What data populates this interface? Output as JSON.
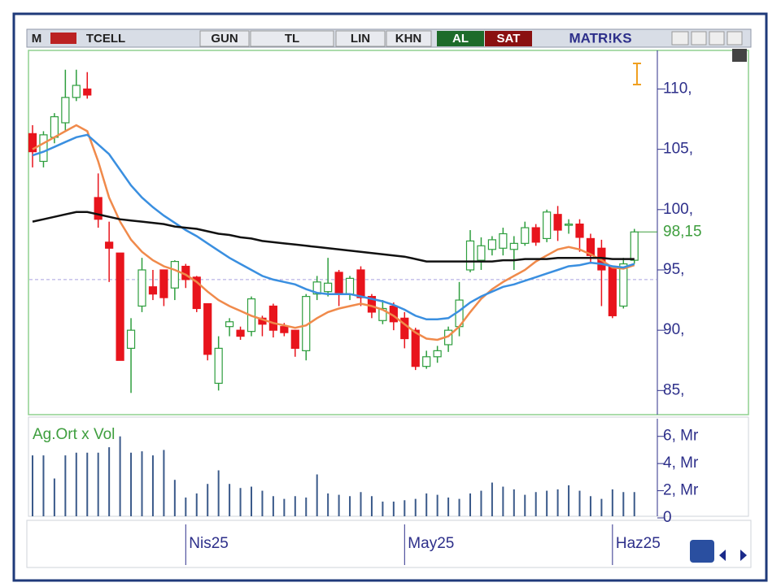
{
  "toolbar": {
    "symbol_icon": "M",
    "symbol": "TCELL",
    "buttons": [
      "GUN",
      "TL",
      "LIN",
      "KHN"
    ],
    "buy": "AL",
    "sell": "SAT",
    "brand": "MATR!KS"
  },
  "chart_data": {
    "type": "candlestick",
    "categories": [
      null,
      null,
      null,
      null,
      null,
      null,
      null,
      null,
      null,
      null,
      null,
      null,
      null,
      null,
      "Nis25",
      null,
      null,
      null,
      null,
      null,
      null,
      null,
      null,
      null,
      null,
      null,
      null,
      null,
      null,
      null,
      null,
      null,
      null,
      null,
      "May25",
      null,
      null,
      null,
      null,
      null,
      null,
      null,
      null,
      null,
      null,
      null,
      null,
      null,
      null,
      null,
      null,
      null,
      null,
      "Haz25",
      null,
      null
    ],
    "open": [
      106.3,
      104,
      106,
      107.2,
      109.3,
      110,
      101,
      97.3,
      96.4,
      88.5,
      92,
      93.6,
      95,
      93.5,
      95.3,
      94.4,
      92.2,
      85.6,
      90.3,
      90,
      89.9,
      91,
      92,
      90.3,
      90,
      88.3,
      93,
      93.2,
      94.8,
      93,
      95,
      92.8,
      90.8,
      92,
      91,
      90,
      87,
      87.8,
      88.8,
      90.3,
      95,
      95.8,
      96.7,
      96.8,
      96.7,
      97.2,
      98.5,
      97.6,
      99.6,
      98.7,
      98.8,
      97.6,
      96.8,
      95.3,
      92,
      95.8
    ],
    "high": [
      107,
      106.5,
      108,
      111.6,
      111.6,
      111.4,
      103,
      99,
      96.4,
      91,
      96,
      95,
      95,
      95.8,
      95.5,
      94.5,
      92.2,
      89.5,
      91,
      90.3,
      92.8,
      91.2,
      92.2,
      90.6,
      90,
      93,
      94.5,
      96,
      95,
      94.5,
      95.3,
      93,
      92.5,
      92.3,
      91.5,
      90.2,
      88.3,
      88.7,
      90.3,
      94,
      98.3,
      97.7,
      97.8,
      98.5,
      97.8,
      99,
      98.8,
      100,
      100.3,
      99.2,
      99.2,
      98,
      97.5,
      95.3,
      96,
      98.4
    ],
    "low": [
      103.5,
      103.5,
      105.5,
      106.5,
      109,
      109.2,
      98.5,
      94,
      87.5,
      84.8,
      91.5,
      92.5,
      92,
      92.5,
      93.5,
      91.5,
      87.5,
      85,
      89.5,
      89.2,
      89.5,
      89.5,
      89.4,
      89.5,
      87.8,
      87.5,
      92.5,
      92.8,
      92,
      92.5,
      92,
      91,
      90.5,
      90,
      88.5,
      86.7,
      86.8,
      87.3,
      88.2,
      89.5,
      94.8,
      95,
      96.2,
      96.2,
      95,
      97,
      97,
      97.3,
      97.4,
      98,
      96.5,
      95.5,
      92,
      91,
      91.8,
      95.5
    ],
    "close": [
      104.8,
      106.2,
      107.7,
      109.3,
      110.3,
      109.5,
      99.2,
      96.8,
      87.5,
      90,
      95,
      93,
      92.7,
      95.7,
      94.2,
      91.8,
      88,
      88.5,
      90.7,
      89.5,
      92.6,
      90.5,
      90,
      89.8,
      88.5,
      92.8,
      94,
      93.9,
      93,
      94.3,
      92.7,
      91.5,
      91.8,
      90.7,
      89.3,
      87,
      87.8,
      88.3,
      90,
      92.5,
      97.4,
      97,
      97.5,
      98,
      97.2,
      98.5,
      97.3,
      99.8,
      98.3,
      98.8,
      97.7,
      96.2,
      95,
      91.2,
      95.5,
      98.15
    ],
    "up_color": "#2e9e3e",
    "down_color": "#e8141c",
    "ylim": [
      83,
      113.2
    ],
    "yticks": [
      {
        "value": 85,
        "label": "85,"
      },
      {
        "value": 90,
        "label": "90,"
      },
      {
        "value": 95,
        "label": "95,"
      },
      {
        "value": 100,
        "label": "100,"
      },
      {
        "value": 105,
        "label": "105,"
      },
      {
        "value": 110,
        "label": "110,"
      }
    ],
    "last_price": {
      "value": 98.15,
      "label": "98,15"
    },
    "reference_line": 94.2,
    "ma_lines": [
      {
        "color": "#f08a4b",
        "values": [
          105,
          105.5,
          106,
          106.5,
          107,
          106.5,
          104,
          101,
          99,
          97.5,
          96.5,
          95.8,
          95.3,
          95,
          94.6,
          94,
          93.2,
          92.5,
          92,
          91.6,
          91.2,
          90.9,
          90.6,
          90.4,
          90.2,
          90.4,
          91,
          91.5,
          91.8,
          92,
          92.2,
          92,
          91.7,
          91.2,
          90.5,
          89.8,
          89.3,
          89.2,
          89.5,
          90.3,
          91.5,
          92.6,
          93.4,
          94,
          94.5,
          95,
          95.7,
          96.2,
          96.7,
          96.9,
          96.7,
          96.3,
          95.8,
          95.2,
          95.1,
          95.4
        ]
      },
      {
        "color": "#3a8fe0",
        "values": [
          104.5,
          104.8,
          105.2,
          105.6,
          106,
          106.2,
          105.4,
          104.6,
          103.3,
          102,
          101,
          100.2,
          99.5,
          98.9,
          98.3,
          97.8,
          97.2,
          96.6,
          96,
          95.5,
          95,
          94.5,
          94.2,
          94,
          93.8,
          93.4,
          93.1,
          93,
          93,
          93,
          92.8,
          92.6,
          92.4,
          92.1,
          91.7,
          91.2,
          90.9,
          90.9,
          91,
          91.6,
          92.3,
          92.8,
          93.2,
          93.6,
          93.8,
          94.1,
          94.4,
          94.7,
          95,
          95.3,
          95.4,
          95.6,
          95.5,
          95.3,
          95.2,
          95.5
        ]
      },
      {
        "color": "#111111",
        "values": [
          99,
          99.2,
          99.4,
          99.6,
          99.8,
          99.8,
          99.6,
          99.4,
          99.2,
          99.1,
          99,
          98.9,
          98.8,
          98.6,
          98.5,
          98.4,
          98.2,
          98,
          97.9,
          97.7,
          97.6,
          97.4,
          97.3,
          97.2,
          97.1,
          97,
          96.9,
          96.8,
          96.7,
          96.6,
          96.5,
          96.4,
          96.3,
          96.2,
          96.1,
          95.9,
          95.7,
          95.7,
          95.7,
          95.7,
          95.7,
          95.7,
          95.7,
          95.8,
          95.8,
          95.9,
          95.9,
          95.9,
          96,
          96,
          96,
          96,
          96,
          95.9,
          95.9,
          95.9
        ]
      }
    ],
    "volume": {
      "title": "Ag.Ort x Vol",
      "color": "#3b5a8a",
      "values": [
        4.6,
        4.6,
        2.9,
        4.6,
        4.8,
        4.8,
        4.8,
        5.2,
        6,
        4.8,
        4.9,
        4.6,
        5,
        2.8,
        1.5,
        1.8,
        2.5,
        3.5,
        2.5,
        2.2,
        2.3,
        2,
        1.6,
        1.4,
        1.6,
        1.5,
        3.2,
        1.8,
        1.7,
        1.6,
        1.9,
        1.6,
        1.2,
        1.2,
        1.3,
        1.4,
        1.8,
        1.7,
        1.5,
        1.4,
        1.8,
        2,
        2.6,
        2.3,
        2.1,
        1.7,
        1.9,
        2,
        2.1,
        2.4,
        2,
        1.6,
        1.4,
        2.1,
        1.9,
        1.9
      ],
      "ylim": [
        0,
        7.3
      ],
      "yticks": [
        0,
        {
          "value": 2,
          "label": "2, Mr"
        },
        {
          "value": 4,
          "label": "4, Mr"
        },
        {
          "value": 6,
          "label": "6, Mr"
        }
      ]
    }
  }
}
